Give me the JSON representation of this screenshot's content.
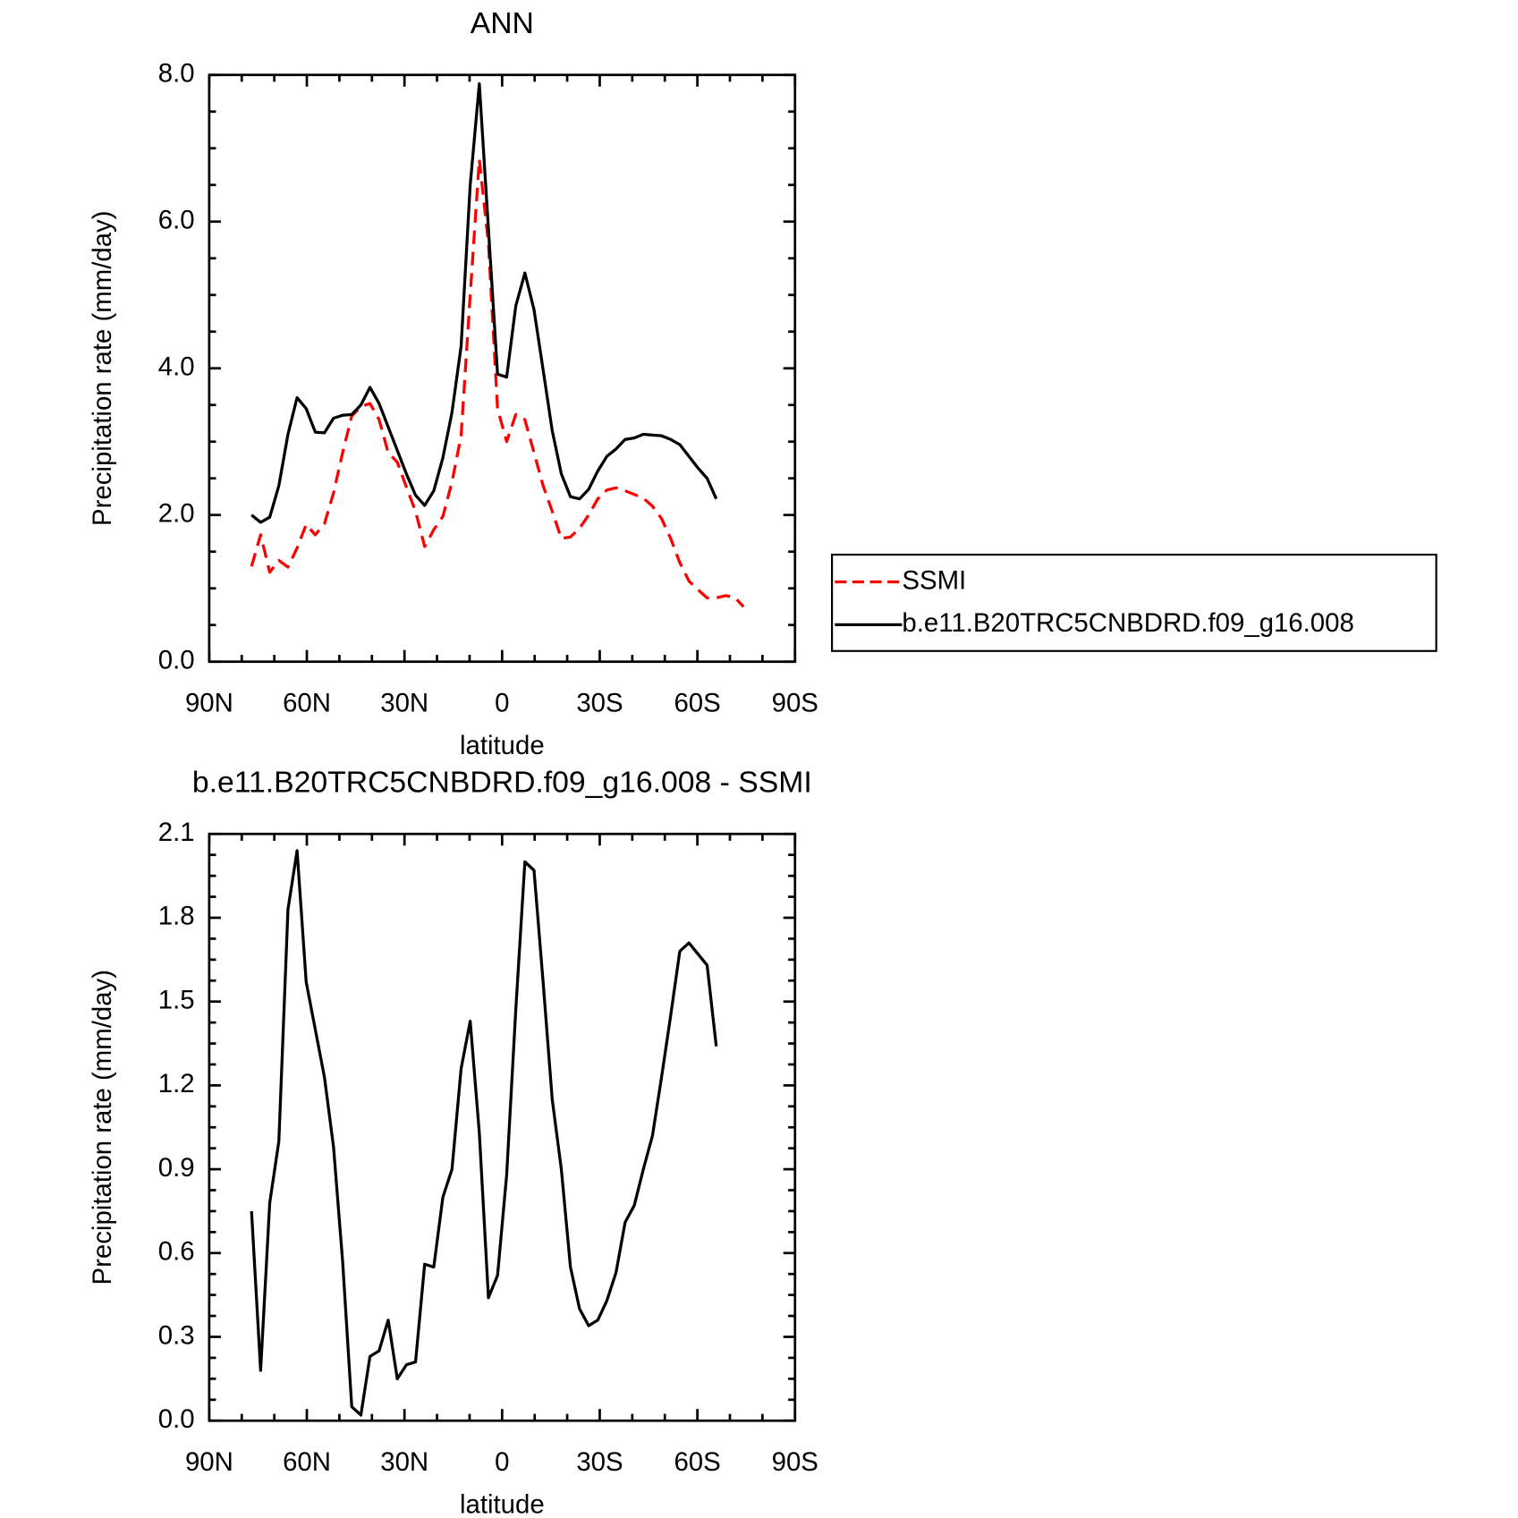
{
  "chart_data": [
    {
      "type": "line",
      "title": "ANN",
      "xlabel": "latitude",
      "ylabel": "Precipitation rate (mm/day)",
      "x": [
        77,
        74.2,
        71.4,
        68.6,
        65.8,
        63,
        60.2,
        57.4,
        54.6,
        51.8,
        49,
        46.2,
        43.4,
        40.6,
        37.8,
        35,
        32.2,
        29.4,
        26.6,
        23.8,
        21,
        18.2,
        15.4,
        12.6,
        9.8,
        7,
        4.2,
        1.4,
        -1.4,
        -4.2,
        -7,
        -9.8,
        -12.6,
        -15.4,
        -18.2,
        -21,
        -23.8,
        -26.6,
        -29.4,
        -32.2,
        -35,
        -37.8,
        -40.6,
        -43.4,
        -46.2,
        -49,
        -51.8,
        -54.6,
        -57.4,
        -60.2,
        -63,
        -65.8,
        -68.6,
        -71.4,
        -74.2
      ],
      "xlim": [
        90,
        -90
      ],
      "xticks": [
        {
          "value": 90,
          "label": "90N"
        },
        {
          "value": 60,
          "label": "60N"
        },
        {
          "value": 30,
          "label": "30N"
        },
        0,
        {
          "value": -30,
          "label": "30S"
        },
        {
          "value": -60,
          "label": "60S"
        },
        {
          "value": -90,
          "label": "90S"
        }
      ],
      "ylim": [
        0,
        8
      ],
      "yticks": [
        {
          "value": 0,
          "label": "0.0"
        },
        {
          "value": 2,
          "label": "2.0"
        },
        {
          "value": 4,
          "label": "4.0"
        },
        {
          "value": 6,
          "label": "6.0"
        },
        {
          "value": 8,
          "label": "8.0"
        }
      ],
      "legend": "right",
      "series": [
        {
          "name": "SSMI",
          "color": "#ff0000",
          "dash": "dashed",
          "values": [
            1.3,
            1.73,
            1.22,
            1.38,
            1.29,
            1.55,
            1.87,
            1.73,
            1.88,
            2.3,
            2.85,
            3.35,
            3.48,
            3.52,
            3.3,
            2.85,
            2.72,
            2.38,
            2.05,
            1.57,
            1.8,
            1.98,
            2.45,
            3.08,
            5.0,
            6.85,
            5.7,
            3.45,
            3.0,
            3.37,
            3.3,
            2.85,
            2.4,
            2.05,
            1.68,
            1.7,
            1.82,
            2.0,
            2.22,
            2.34,
            2.37,
            2.33,
            2.28,
            2.23,
            2.12,
            1.95,
            1.68,
            1.35,
            1.1,
            0.98,
            0.87,
            0.87,
            0.9,
            0.88,
            0.75
          ]
        },
        {
          "name": "b.e11.B20TRC5CNBDRD.f09_g16.008",
          "color": "#000000",
          "values": [
            2.0,
            1.9,
            1.97,
            2.4,
            3.1,
            3.6,
            3.45,
            3.13,
            3.12,
            3.32,
            3.36,
            3.37,
            3.5,
            3.74,
            3.52,
            3.2,
            2.88,
            2.56,
            2.27,
            2.13,
            2.33,
            2.78,
            3.4,
            4.3,
            6.5,
            7.88,
            5.9,
            3.92,
            3.88,
            4.85,
            5.3,
            4.8,
            3.98,
            3.15,
            2.56,
            2.25,
            2.22,
            2.35,
            2.6,
            2.8,
            2.9,
            3.03,
            3.05,
            3.1,
            3.09,
            3.08,
            3.03,
            2.96,
            2.8,
            2.64,
            2.5,
            2.22,
            null,
            null,
            null
          ]
        }
      ]
    },
    {
      "type": "line",
      "title": "b.e11.B20TRC5CNBDRD.f09_g16.008 - SSMI",
      "xlabel": "latitude",
      "ylabel": "Precipitation rate (mm/day)",
      "x": [
        77,
        74.2,
        71.4,
        68.6,
        65.8,
        63,
        60.2,
        57.4,
        54.6,
        51.8,
        49,
        46.2,
        43.4,
        40.6,
        37.8,
        35,
        32.2,
        29.4,
        26.6,
        23.8,
        21,
        18.2,
        15.4,
        12.6,
        9.8,
        7,
        4.2,
        1.4,
        -1.4,
        -4.2,
        -7,
        -9.8,
        -12.6,
        -15.4,
        -18.2,
        -21,
        -23.8,
        -26.6,
        -29.4,
        -32.2,
        -35,
        -37.8,
        -40.6,
        -43.4,
        -46.2,
        -49,
        -51.8,
        -54.6,
        -57.4,
        -60.2,
        -63,
        -65.8
      ],
      "xlim": [
        90,
        -90
      ],
      "xticks": [
        {
          "value": 90,
          "label": "90N"
        },
        {
          "value": 60,
          "label": "60N"
        },
        {
          "value": 30,
          "label": "30N"
        },
        0,
        {
          "value": -30,
          "label": "30S"
        },
        {
          "value": -60,
          "label": "60S"
        },
        {
          "value": -90,
          "label": "90S"
        }
      ],
      "ylim": [
        0,
        2.1
      ],
      "yticks": [
        {
          "value": 0,
          "label": "0.0"
        },
        0.3,
        0.6,
        0.9,
        1.2,
        1.5,
        1.8,
        2.1
      ],
      "series": [
        {
          "color": "#000000",
          "values": [
            0.75,
            0.18,
            0.78,
            1.0,
            1.83,
            2.04,
            1.57,
            1.4,
            1.23,
            0.98,
            0.57,
            0.05,
            0.02,
            0.23,
            0.25,
            0.36,
            0.15,
            0.2,
            0.21,
            0.56,
            0.55,
            0.8,
            0.9,
            1.26,
            1.43,
            1.03,
            0.44,
            0.52,
            0.88,
            1.47,
            2.0,
            1.97,
            1.57,
            1.15,
            0.9,
            0.55,
            0.4,
            0.34,
            0.36,
            0.43,
            0.53,
            0.71,
            0.77,
            0.9,
            1.02,
            1.23,
            1.45,
            1.68,
            1.71,
            1.67,
            1.63,
            1.34
          ]
        }
      ]
    }
  ]
}
